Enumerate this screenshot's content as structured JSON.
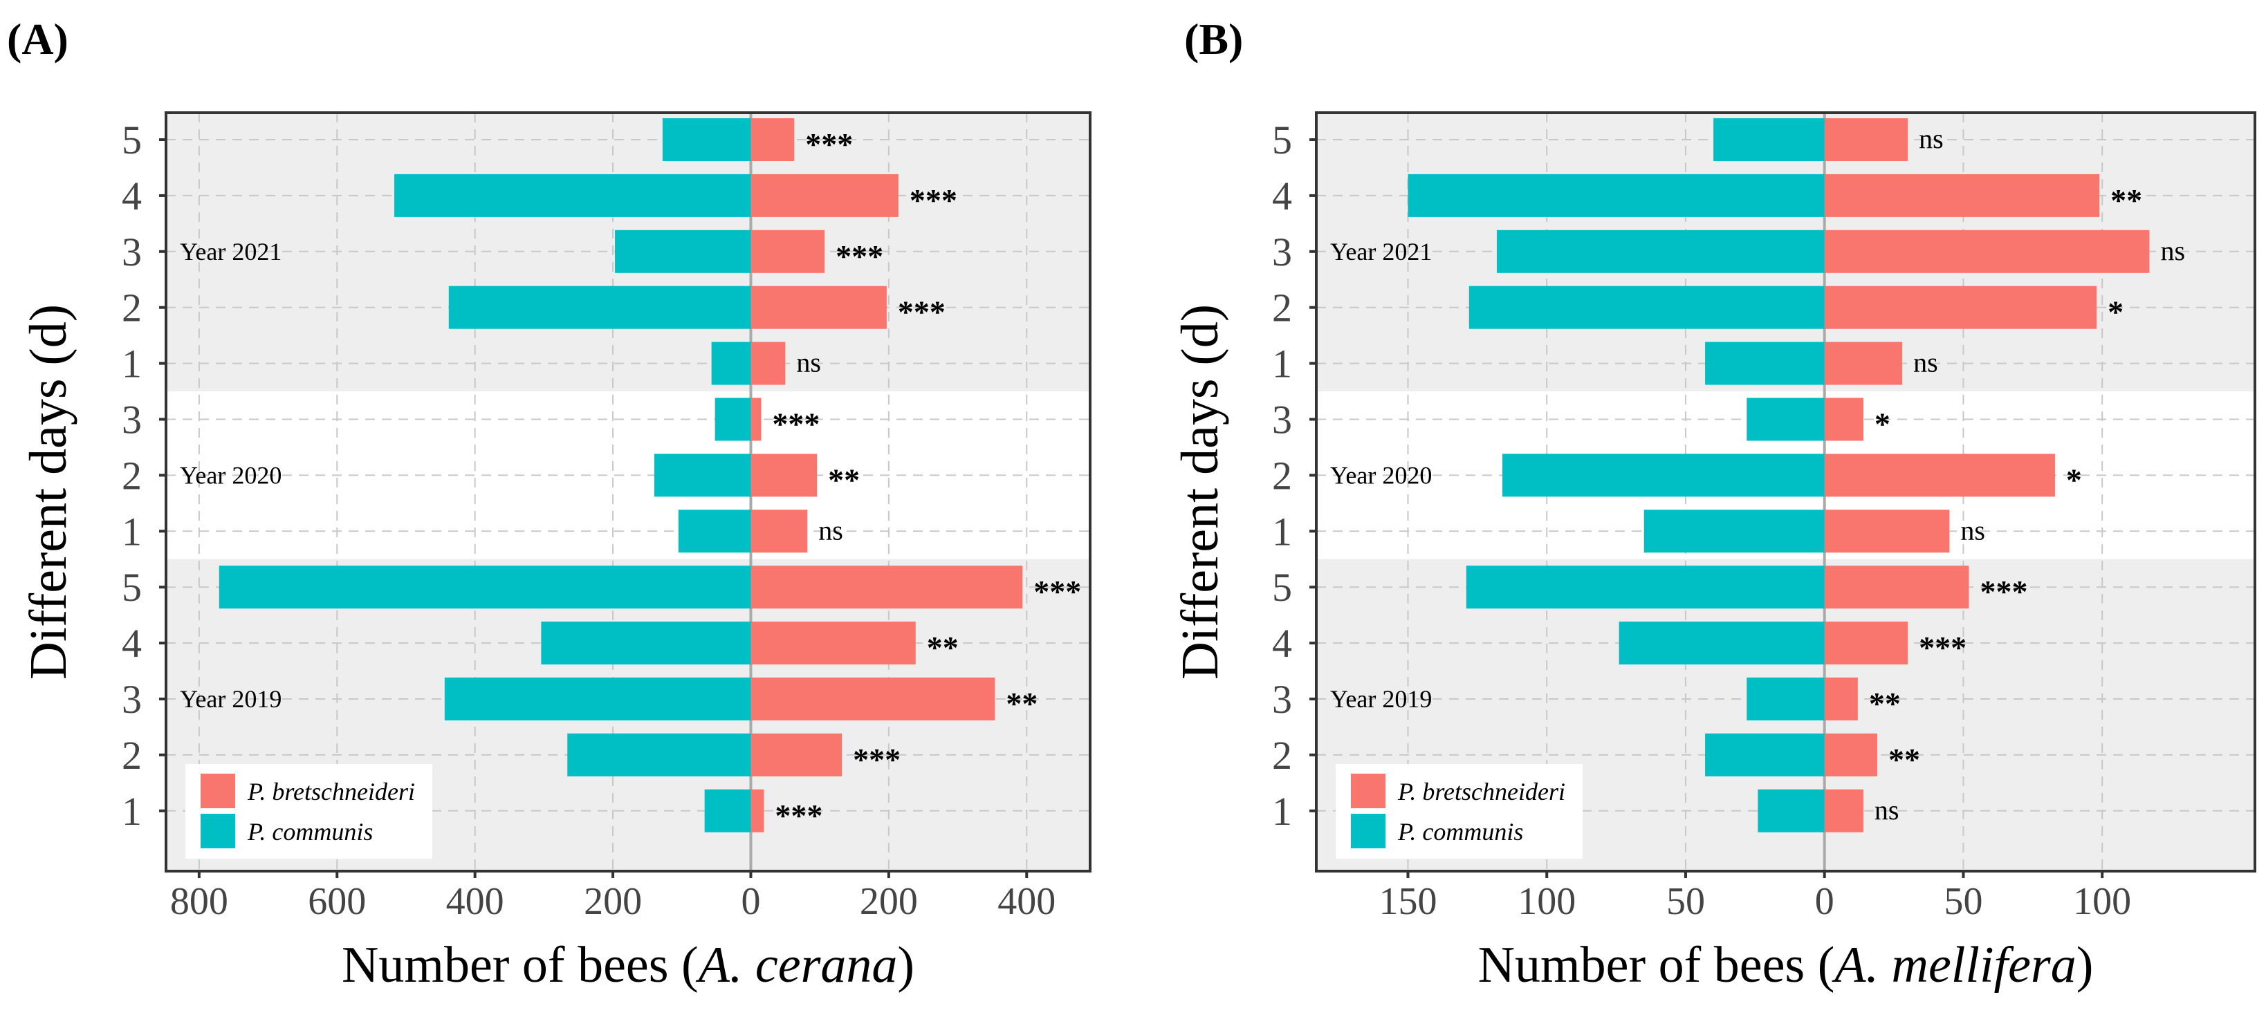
{
  "colors": {
    "communis": "#00BFC4",
    "bretschneideri": "#F8766D",
    "band": "#EEEEEE"
  },
  "chart_data": [
    {
      "type": "bar",
      "orientation": "horizontal-diverging",
      "panel_label": "(A)",
      "ylabel": "Different days (d)",
      "xlabel_prefix": "Number of bees (",
      "xlabel_species": "A. cerana",
      "xlabel_suffix": ")",
      "xlim": [
        -848,
        492
      ],
      "xticks": [
        -800,
        -600,
        -400,
        -200,
        0,
        200,
        400
      ],
      "xtick_labels": [
        "800",
        "600",
        "400",
        "200",
        "0",
        "200",
        "400"
      ],
      "grid": true,
      "legend": {
        "placement": "bottom-left",
        "entries": [
          "P. bretschneideri",
          "P. communis"
        ]
      },
      "groups": [
        {
          "year": "Year 2021",
          "shaded": true,
          "rows": [
            {
              "day": "5",
              "communis": 128,
              "bretschneideri": 63,
              "sig": "***"
            },
            {
              "day": "4",
              "communis": 517,
              "bretschneideri": 214,
              "sig": "***"
            },
            {
              "day": "3",
              "communis": 197,
              "bretschneideri": 107,
              "sig": "***"
            },
            {
              "day": "2",
              "communis": 438,
              "bretschneideri": 197,
              "sig": "***"
            },
            {
              "day": "1",
              "communis": 57,
              "bretschneideri": 50,
              "sig": "ns"
            }
          ]
        },
        {
          "year": "Year 2020",
          "shaded": false,
          "rows": [
            {
              "day": "3",
              "communis": 52,
              "bretschneideri": 15,
              "sig": "***"
            },
            {
              "day": "2",
              "communis": 140,
              "bretschneideri": 96,
              "sig": "**"
            },
            {
              "day": "1",
              "communis": 105,
              "bretschneideri": 82,
              "sig": "ns"
            }
          ]
        },
        {
          "year": "Year 2019",
          "shaded": true,
          "rows": [
            {
              "day": "5",
              "communis": 771,
              "bretschneideri": 394,
              "sig": "***"
            },
            {
              "day": "4",
              "communis": 304,
              "bretschneideri": 239,
              "sig": "**"
            },
            {
              "day": "3",
              "communis": 444,
              "bretschneideri": 354,
              "sig": "**"
            },
            {
              "day": "2",
              "communis": 266,
              "bretschneideri": 132,
              "sig": "***"
            },
            {
              "day": "1",
              "communis": 67,
              "bretschneideri": 19,
              "sig": "***"
            }
          ]
        }
      ]
    },
    {
      "type": "bar",
      "orientation": "horizontal-diverging",
      "panel_label": "(B)",
      "ylabel": "Different days (d)",
      "xlabel_prefix": "Number of bees (",
      "xlabel_species": "A. mellifera",
      "xlabel_suffix": ")",
      "xlim": [
        -183,
        155
      ],
      "xticks": [
        -150,
        -100,
        -50,
        0,
        50,
        100
      ],
      "xtick_labels": [
        "150",
        "100",
        "50",
        "0",
        "50",
        "100"
      ],
      "grid": true,
      "legend": {
        "placement": "bottom-left",
        "entries": [
          "P. bretschneideri",
          "P. communis"
        ]
      },
      "groups": [
        {
          "year": "Year 2021",
          "shaded": true,
          "rows": [
            {
              "day": "5",
              "communis": 40,
              "bretschneideri": 30,
              "sig": "ns"
            },
            {
              "day": "4",
              "communis": 150,
              "bretschneideri": 99,
              "sig": "**"
            },
            {
              "day": "3",
              "communis": 118,
              "bretschneideri": 117,
              "sig": "ns"
            },
            {
              "day": "2",
              "communis": 128,
              "bretschneideri": 98,
              "sig": "*"
            },
            {
              "day": "1",
              "communis": 43,
              "bretschneideri": 28,
              "sig": "ns"
            }
          ]
        },
        {
          "year": "Year 2020",
          "shaded": false,
          "rows": [
            {
              "day": "3",
              "communis": 28,
              "bretschneideri": 14,
              "sig": "*"
            },
            {
              "day": "2",
              "communis": 116,
              "bretschneideri": 83,
              "sig": "*"
            },
            {
              "day": "1",
              "communis": 65,
              "bretschneideri": 45,
              "sig": "ns"
            }
          ]
        },
        {
          "year": "Year 2019",
          "shaded": true,
          "rows": [
            {
              "day": "5",
              "communis": 129,
              "bretschneideri": 52,
              "sig": "***"
            },
            {
              "day": "4",
              "communis": 74,
              "bretschneideri": 30,
              "sig": "***"
            },
            {
              "day": "3",
              "communis": 28,
              "bretschneideri": 12,
              "sig": "**"
            },
            {
              "day": "2",
              "communis": 43,
              "bretschneideri": 19,
              "sig": "**"
            },
            {
              "day": "1",
              "communis": 24,
              "bretschneideri": 14,
              "sig": "ns"
            }
          ]
        }
      ]
    }
  ]
}
